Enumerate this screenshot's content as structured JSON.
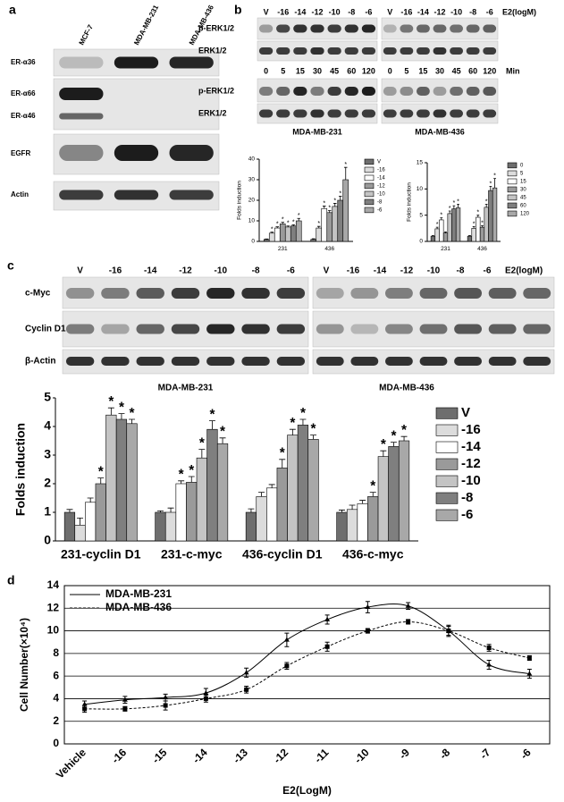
{
  "figure": {
    "panel_labels": [
      "a",
      "b",
      "c",
      "d"
    ],
    "a": {
      "lanes": [
        "MCF-7",
        "MDA-MB-231",
        "MDA-MB-436"
      ],
      "rows": [
        "ER-α36",
        "ER-α66",
        "ER-α46",
        "EGFR",
        "Actin"
      ]
    },
    "b": {
      "dose_lanes": [
        "V",
        "-16",
        "-14",
        "-12",
        "-10",
        "-8",
        "-6"
      ],
      "dose_unit": "E2(logM)",
      "time_lanes": [
        "0",
        "5",
        "15",
        "30",
        "45",
        "60",
        "120"
      ],
      "time_unit": "Min",
      "rows": [
        "p-ERK1/2",
        "ERK1/2"
      ],
      "cells": [
        "MDA-MB-231",
        "MDA-MB-436"
      ]
    },
    "c": {
      "lanes": [
        "V",
        "-16",
        "-14",
        "-12",
        "-10",
        "-8",
        "-6"
      ],
      "unit": "E2(logM)",
      "rows": [
        "c-Myc",
        "Cyclin D1",
        "β-Actin"
      ],
      "cells": [
        "MDA-MB-231",
        "MDA-MB-436"
      ]
    }
  },
  "chart_data": [
    {
      "type": "bar",
      "ylabel": "Folds induction",
      "categories": [
        "231",
        "436"
      ],
      "ylim": [
        0,
        40
      ],
      "yticks": [
        0,
        10,
        20,
        30,
        40
      ],
      "significance_symbol": "*",
      "legend": "right",
      "series": [
        {
          "name": "V",
          "color": "#6e6e6e",
          "values": [
            1,
            1
          ],
          "errors": [
            0.2,
            0.3
          ],
          "significant": [
            false,
            false
          ]
        },
        {
          "name": "-16",
          "color": "#dcdcdc",
          "values": [
            4,
            6.5
          ],
          "errors": [
            0.5,
            0.8
          ],
          "significant": [
            true,
            true
          ]
        },
        {
          "name": "-14",
          "color": "#ffffff",
          "values": [
            6.5,
            16
          ],
          "errors": [
            0.6,
            1.2
          ],
          "significant": [
            true,
            true
          ]
        },
        {
          "name": "-12",
          "color": "#9a9a9a",
          "values": [
            8.5,
            14
          ],
          "errors": [
            0.8,
            1
          ],
          "significant": [
            true,
            true
          ]
        },
        {
          "name": "-10",
          "color": "#c4c4c4",
          "values": [
            7,
            17
          ],
          "errors": [
            0.5,
            1.5
          ],
          "significant": [
            true,
            true
          ]
        },
        {
          "name": "-8",
          "color": "#7f7f7f",
          "values": [
            7.5,
            20
          ],
          "errors": [
            0.6,
            2
          ],
          "significant": [
            true,
            true
          ]
        },
        {
          "name": "-6",
          "color": "#a8a8a8",
          "values": [
            10,
            30
          ],
          "errors": [
            1.2,
            6
          ],
          "significant": [
            true,
            true
          ]
        }
      ]
    },
    {
      "type": "bar",
      "ylabel": "Folds induction",
      "categories": [
        "231",
        "436"
      ],
      "ylim": [
        0,
        15
      ],
      "yticks": [
        0,
        5,
        10,
        15
      ],
      "significance_symbol": "*",
      "legend": "right",
      "series": [
        {
          "name": "0",
          "color": "#6e6e6e",
          "values": [
            1,
            1
          ],
          "errors": [
            0.1,
            0.1
          ],
          "significant": [
            false,
            false
          ]
        },
        {
          "name": "5",
          "color": "#dcdcdc",
          "values": [
            2.4,
            2.5
          ],
          "errors": [
            0.3,
            0.3
          ],
          "significant": [
            true,
            true
          ]
        },
        {
          "name": "15",
          "color": "#ffffff",
          "values": [
            4.1,
            4.6
          ],
          "errors": [
            0.4,
            0.4
          ],
          "significant": [
            true,
            true
          ]
        },
        {
          "name": "30",
          "color": "#9a9a9a",
          "values": [
            1.6,
            2.7
          ],
          "errors": [
            0.2,
            0.3
          ],
          "significant": [
            false,
            true
          ]
        },
        {
          "name": "45",
          "color": "#c4c4c4",
          "values": [
            5.3,
            6.5
          ],
          "errors": [
            0.5,
            0.6
          ],
          "significant": [
            true,
            true
          ]
        },
        {
          "name": "60",
          "color": "#7f7f7f",
          "values": [
            6.2,
            9.7
          ],
          "errors": [
            0.6,
            0.8
          ],
          "significant": [
            true,
            true
          ]
        },
        {
          "name": "120",
          "color": "#a8a8a8",
          "values": [
            6.4,
            10.2
          ],
          "errors": [
            0.7,
            1.8
          ],
          "significant": [
            true,
            true
          ]
        }
      ]
    },
    {
      "type": "bar",
      "ylabel": "Folds induction",
      "categories": [
        "231-cyclin D1",
        "231-c-myc",
        "436-cyclin D1",
        "436-c-myc"
      ],
      "ylim": [
        0,
        5
      ],
      "yticks": [
        0,
        1,
        2,
        3,
        4,
        5
      ],
      "significance_symbol": "*",
      "legend": "right",
      "series": [
        {
          "name": "V",
          "color": "#6e6e6e",
          "values": [
            1.0,
            1.0,
            1.0,
            1.0
          ],
          "errors": [
            0.1,
            0.05,
            0.12,
            0.08
          ],
          "significant": [
            false,
            false,
            false,
            false
          ]
        },
        {
          "name": "-16",
          "color": "#dcdcdc",
          "values": [
            0.55,
            1.0,
            1.55,
            1.1
          ],
          "errors": [
            0.25,
            0.15,
            0.15,
            0.15
          ],
          "significant": [
            false,
            false,
            false,
            false
          ]
        },
        {
          "name": "-14",
          "color": "#ffffff",
          "values": [
            1.35,
            2.0,
            1.85,
            1.3
          ],
          "errors": [
            0.15,
            0.1,
            0.12,
            0.12
          ],
          "significant": [
            false,
            true,
            false,
            false
          ]
        },
        {
          "name": "-12",
          "color": "#9a9a9a",
          "values": [
            2.0,
            2.05,
            2.55,
            1.55
          ],
          "errors": [
            0.2,
            0.2,
            0.3,
            0.15
          ],
          "significant": [
            true,
            true,
            true,
            true
          ]
        },
        {
          "name": "-10",
          "color": "#c4c4c4",
          "values": [
            4.4,
            2.9,
            3.7,
            2.95
          ],
          "errors": [
            0.25,
            0.3,
            0.2,
            0.2
          ],
          "significant": [
            true,
            true,
            true,
            true
          ]
        },
        {
          "name": "-8",
          "color": "#7f7f7f",
          "values": [
            4.25,
            3.9,
            4.05,
            3.3
          ],
          "errors": [
            0.2,
            0.3,
            0.2,
            0.15
          ],
          "significant": [
            true,
            true,
            true,
            true
          ]
        },
        {
          "name": "-6",
          "color": "#a8a8a8",
          "values": [
            4.1,
            3.4,
            3.55,
            3.5
          ],
          "errors": [
            0.15,
            0.2,
            0.15,
            0.15
          ],
          "significant": [
            true,
            true,
            true,
            true
          ]
        }
      ]
    },
    {
      "type": "line",
      "xlabel": "E2(LogM)",
      "ylabel": "Cell Number(×10⁴)",
      "categories": [
        "Vehicle",
        "-16",
        "-15",
        "-14",
        "-13",
        "-12",
        "-11",
        "-10",
        "-9",
        "-8",
        "-7",
        "-6"
      ],
      "ylim": [
        0,
        14
      ],
      "yticks": [
        0,
        2,
        4,
        6,
        8,
        10,
        12,
        14
      ],
      "grid": true,
      "legend": "upper left",
      "series": [
        {
          "name": "MDA-MB-231",
          "color": "#000000",
          "marker": "triangle",
          "linestyle": "solid",
          "values": [
            3.5,
            3.9,
            4.1,
            4.5,
            6.3,
            9.2,
            11.0,
            12.1,
            12.2,
            10.0,
            7.0,
            6.2
          ],
          "errors": [
            0.3,
            0.3,
            0.3,
            0.4,
            0.4,
            0.6,
            0.4,
            0.5,
            0.3,
            0.5,
            0.4,
            0.4
          ]
        },
        {
          "name": "MDA-MB-436",
          "color": "#000000",
          "marker": "square",
          "linestyle": "dashed",
          "values": [
            3.1,
            3.1,
            3.4,
            4.0,
            4.8,
            6.9,
            8.6,
            10.0,
            10.8,
            10.0,
            8.5,
            7.6
          ],
          "errors": [
            0.3,
            0.2,
            0.4,
            0.3,
            0.3,
            0.3,
            0.4,
            0.2,
            0.2,
            0.4,
            0.3,
            0.2
          ]
        }
      ]
    }
  ]
}
